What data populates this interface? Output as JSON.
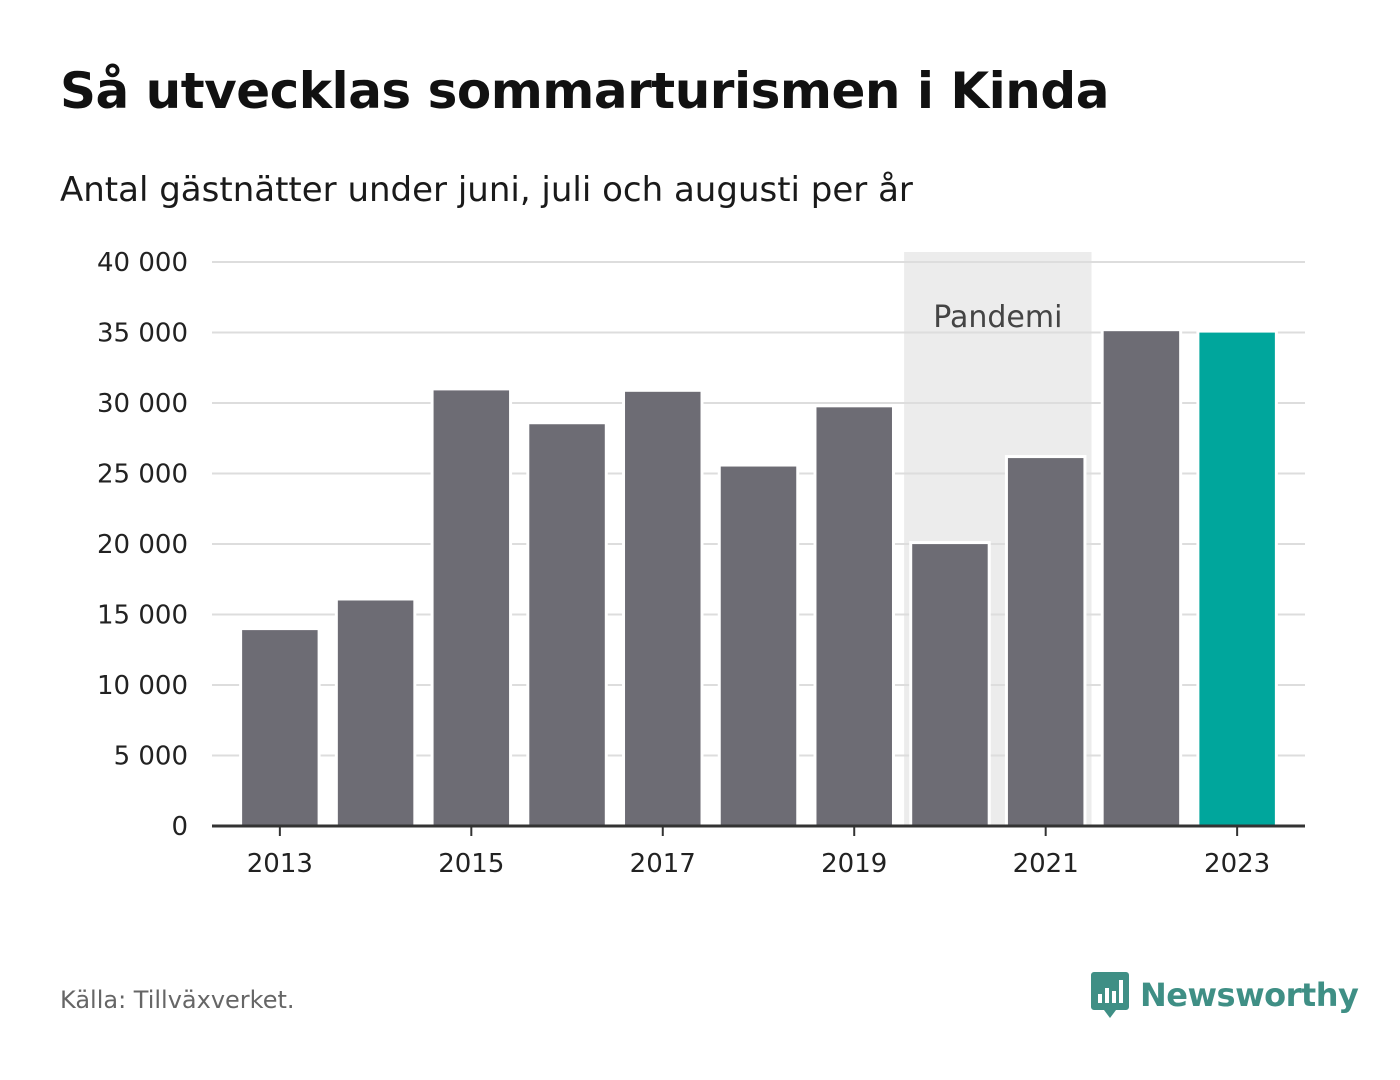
{
  "chart_data": {
    "type": "bar",
    "title": "Så utvecklas sommarturismen i Kinda",
    "subtitle": "Antal gästnätter under juni, juli och augusti per år",
    "categories": [
      "2013",
      "2014",
      "2015",
      "2016",
      "2017",
      "2018",
      "2019",
      "2020",
      "2021",
      "2022",
      "2023"
    ],
    "values": [
      14000,
      16100,
      31000,
      28600,
      30900,
      25600,
      29800,
      20100,
      26200,
      35200,
      35100
    ],
    "x_tick_labels": [
      "2013",
      "2015",
      "2017",
      "2019",
      "2021",
      "2023"
    ],
    "y_ticks": [
      0,
      5000,
      10000,
      15000,
      20000,
      25000,
      30000,
      35000,
      40000
    ],
    "y_tick_labels": [
      "0",
      "5 000",
      "10 000",
      "15 000",
      "20 000",
      "25 000",
      "30 000",
      "35 000",
      "40 000"
    ],
    "ylim": [
      0,
      40000
    ],
    "xlabel": "",
    "ylabel": "",
    "grid": true,
    "highlight_category": "2023",
    "annotation": {
      "label": "Pandemi",
      "from": "2020",
      "to": "2021"
    },
    "colors": {
      "bar": "#6d6c74",
      "highlight": "#00a69c",
      "band": "#ececec",
      "grid": "#dddddd",
      "axis": "#333333"
    }
  },
  "source": "Källa: Tillväxverket.",
  "logo": {
    "text": "Newsworthy",
    "color": "#3f8f85",
    "icon": "bar-chart-speech-bubble-icon"
  }
}
